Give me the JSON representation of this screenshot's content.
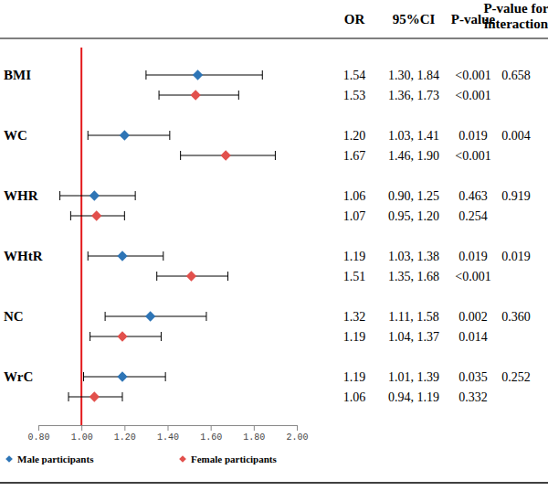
{
  "chart_data": {
    "type": "forest",
    "columns": [
      "OR",
      "95%CI",
      "P-value",
      "P-value for interaction"
    ],
    "categories": [
      "BMI",
      "WC",
      "WHR",
      "WHtR",
      "NC",
      "WrC"
    ],
    "series": [
      {
        "name": "Male participants",
        "color": "#2e75b6",
        "marker": "diamond",
        "values": [
          1.54,
          1.2,
          1.06,
          1.19,
          1.32,
          1.19
        ],
        "value_labels": [
          "1.54",
          "1.20",
          "1.06",
          "1.19",
          "1.32",
          "1.19"
        ],
        "ci_low": [
          1.3,
          1.03,
          0.9,
          1.03,
          1.11,
          1.01
        ],
        "ci_high": [
          1.84,
          1.41,
          1.25,
          1.38,
          1.58,
          1.39
        ],
        "ci_labels": [
          "1.30, 1.84",
          "1.03, 1.41",
          "0.90, 1.25",
          "1.03, 1.38",
          "1.11, 1.58",
          "1.01, 1.39"
        ],
        "p_labels": [
          "<0.001",
          "0.019",
          "0.463",
          "0.019",
          "0.002",
          "0.035"
        ]
      },
      {
        "name": "Female participants",
        "color": "#e2504c",
        "marker": "diamond",
        "values": [
          1.53,
          1.67,
          1.07,
          1.51,
          1.19,
          1.06
        ],
        "value_labels": [
          "1.53",
          "1.67",
          "1.07",
          "1.51",
          "1.19",
          "1.06"
        ],
        "ci_low": [
          1.36,
          1.46,
          0.95,
          1.35,
          1.04,
          0.94
        ],
        "ci_high": [
          1.73,
          1.9,
          1.2,
          1.68,
          1.37,
          1.19
        ],
        "ci_labels": [
          "1.36, 1.73",
          "1.46, 1.90",
          "0.95, 1.20",
          "1.35, 1.68",
          "1.04, 1.37",
          "0.94, 1.19"
        ],
        "p_labels": [
          "<0.001",
          "<0.001",
          "0.254",
          "<0.001",
          "0.014",
          "0.332"
        ]
      }
    ],
    "interaction_p": [
      0.658,
      0.004,
      0.919,
      0.019,
      0.36,
      0.252
    ],
    "interaction_p_labels": [
      "0.658",
      "0.004",
      "0.919",
      "0.019",
      "0.360",
      "0.252"
    ],
    "reference_line": 1,
    "xlim": [
      0.8,
      2.0
    ],
    "xticks": [
      {
        "value": 0.8,
        "label": "0.80"
      },
      {
        "value": 1.0,
        "label": "1.00"
      },
      {
        "value": 1.2,
        "label": "1.20"
      },
      {
        "value": 1.4,
        "label": "1.40"
      },
      {
        "value": 1.6,
        "label": "1.60"
      },
      {
        "value": 1.8,
        "label": "1.80"
      },
      {
        "value": 2.0,
        "label": "2.00"
      }
    ],
    "legend": "bottom-left"
  }
}
